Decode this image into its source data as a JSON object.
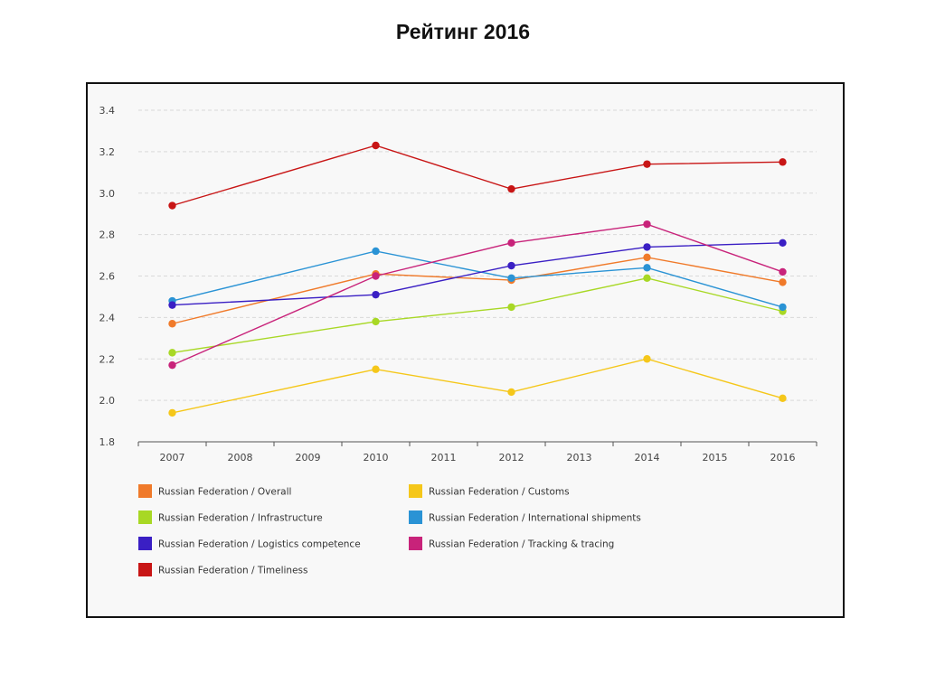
{
  "slide": {
    "title": "Рейтинг 2016"
  },
  "chart_data": {
    "type": "line",
    "title": "",
    "xlabel": "",
    "ylabel": "",
    "x": [
      "2007",
      "2008",
      "2009",
      "2010",
      "2011",
      "2012",
      "2013",
      "2014",
      "2015",
      "2016"
    ],
    "ylim": [
      1.8,
      3.4
    ],
    "yticks": [
      "1.8",
      "2.0",
      "2.2",
      "2.4",
      "2.6",
      "2.8",
      "3.0",
      "3.2",
      "3.4"
    ],
    "grid": "horizontal dashed",
    "legend_position": "bottom",
    "series": [
      {
        "name": "Russian Federation / Overall",
        "color": "#f07a2a",
        "points": [
          [
            "2007",
            2.37
          ],
          [
            "2010",
            2.61
          ],
          [
            "2012",
            2.58
          ],
          [
            "2014",
            2.69
          ],
          [
            "2016",
            2.57
          ]
        ]
      },
      {
        "name": "Russian Federation / Customs",
        "color": "#f5c71a",
        "points": [
          [
            "2007",
            1.94
          ],
          [
            "2010",
            2.15
          ],
          [
            "2012",
            2.04
          ],
          [
            "2014",
            2.2
          ],
          [
            "2016",
            2.01
          ]
        ]
      },
      {
        "name": "Russian Federation / Infrastructure",
        "color": "#a8d825",
        "points": [
          [
            "2007",
            2.23
          ],
          [
            "2010",
            2.38
          ],
          [
            "2012",
            2.45
          ],
          [
            "2014",
            2.59
          ],
          [
            "2016",
            2.43
          ]
        ]
      },
      {
        "name": "Russian Federation / International shipments",
        "color": "#2a93d5",
        "points": [
          [
            "2007",
            2.48
          ],
          [
            "2010",
            2.72
          ],
          [
            "2012",
            2.59
          ],
          [
            "2014",
            2.64
          ],
          [
            "2016",
            2.45
          ]
        ]
      },
      {
        "name": "Russian Federation / Logistics competence",
        "color": "#3a1fc4",
        "points": [
          [
            "2007",
            2.46
          ],
          [
            "2010",
            2.51
          ],
          [
            "2012",
            2.65
          ],
          [
            "2014",
            2.74
          ],
          [
            "2016",
            2.76
          ]
        ]
      },
      {
        "name": "Russian Federation / Tracking & tracing",
        "color": "#c8237a",
        "points": [
          [
            "2007",
            2.17
          ],
          [
            "2010",
            2.6
          ],
          [
            "2012",
            2.76
          ],
          [
            "2014",
            2.85
          ],
          [
            "2016",
            2.62
          ]
        ]
      },
      {
        "name": "Russian Federation / Timeliness",
        "color": "#c81515",
        "points": [
          [
            "2007",
            2.94
          ],
          [
            "2010",
            3.23
          ],
          [
            "2012",
            3.02
          ],
          [
            "2014",
            3.14
          ],
          [
            "2016",
            3.15
          ]
        ]
      }
    ]
  }
}
